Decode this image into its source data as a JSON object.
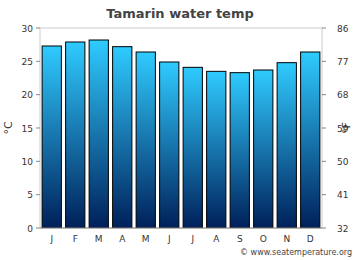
{
  "chart_data": {
    "type": "bar",
    "title": "Tamarin water temp",
    "categories": [
      "J",
      "F",
      "M",
      "A",
      "M",
      "J",
      "J",
      "A",
      "S",
      "O",
      "N",
      "D"
    ],
    "values": [
      27.3,
      27.9,
      28.2,
      27.2,
      26.4,
      24.9,
      24.1,
      23.5,
      23.3,
      23.7,
      24.8,
      26.4
    ],
    "color": "#2fcbff",
    "y_label": "°C",
    "y2_label": "°F",
    "ylim": [
      0,
      30
    ],
    "yticks": [
      0,
      5,
      10,
      15,
      20,
      25,
      30
    ],
    "y2lim": [
      32,
      86
    ],
    "y2ticks": [
      32,
      41,
      50,
      59,
      68,
      77,
      86
    ],
    "grid": false,
    "source": "© www.seatemperature.org"
  }
}
